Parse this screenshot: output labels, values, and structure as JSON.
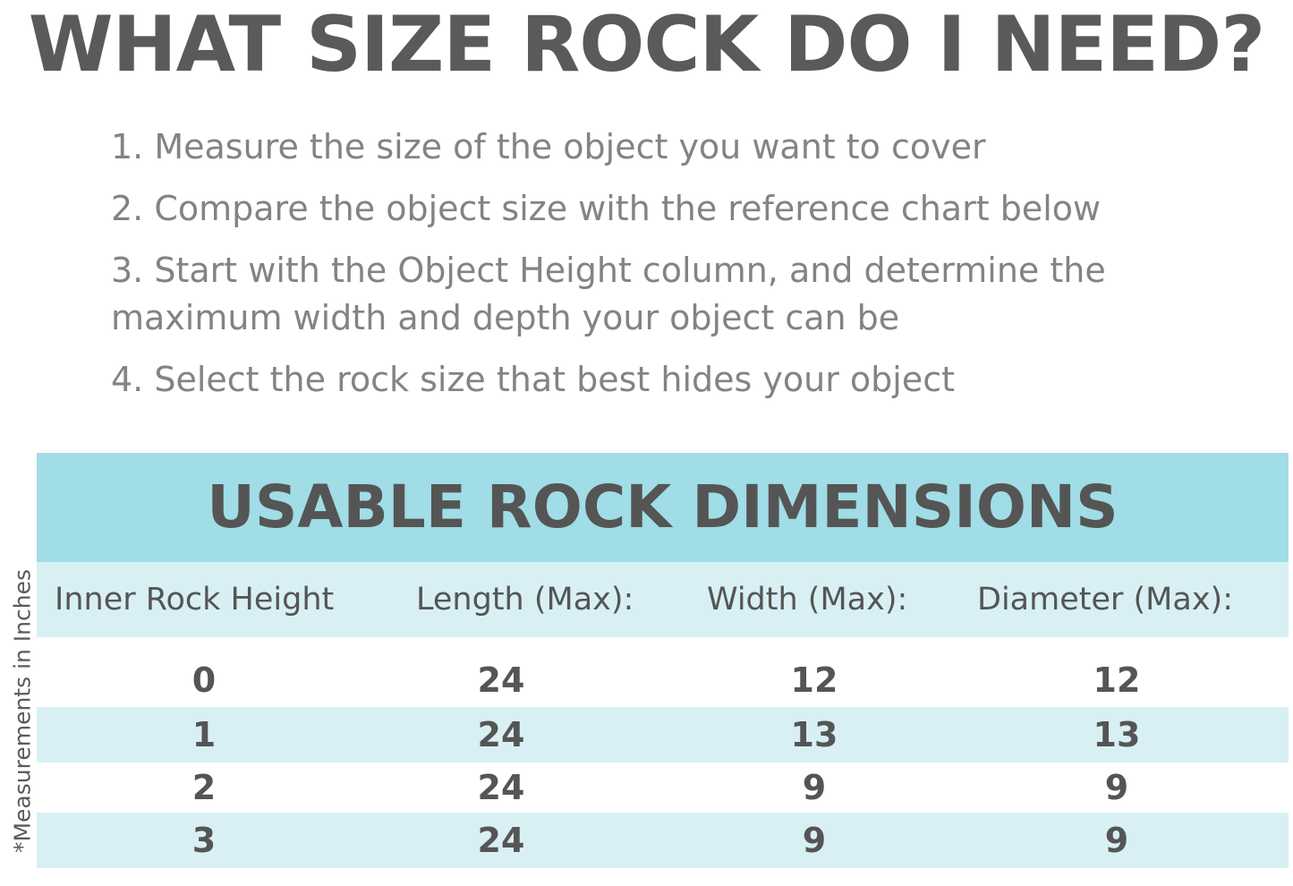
{
  "title": "WHAT SIZE ROCK DO I NEED?",
  "steps": [
    "1. Measure the size of the object you want to cover",
    "2. Compare the object size with the reference chart below",
    "3. Start with the Object Height column, and determine the maximum width and depth your object can be",
    "4. Select the rock size that best hides your object"
  ],
  "side_note": "*Measurements in Inches",
  "table": {
    "title": "USABLE ROCK DIMENSIONS",
    "headers": [
      "Inner Rock Height",
      "Length (Max):",
      "Width (Max):",
      "Diameter (Max):"
    ],
    "rows": [
      [
        "0",
        "24",
        "12",
        "12"
      ],
      [
        "1",
        "24",
        "13",
        "13"
      ],
      [
        "2",
        "24",
        "9",
        "9"
      ],
      [
        "3",
        "24",
        "9",
        "9"
      ]
    ]
  },
  "colors": {
    "band": "#a0dde6",
    "stripe": "#d8f0f4",
    "text": "#555555",
    "steps_text": "#838383"
  }
}
